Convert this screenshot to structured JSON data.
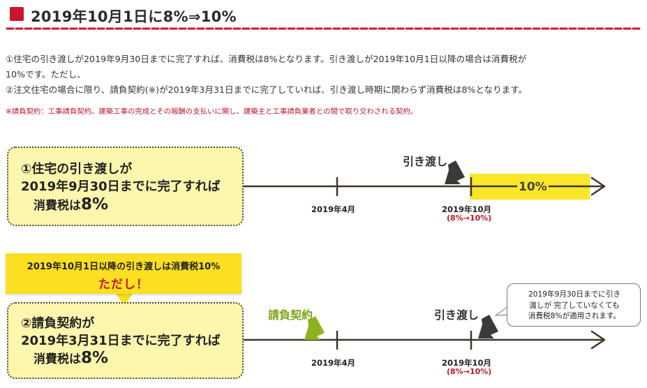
{
  "header": {
    "title": "2019年10月1日に8%⇒10%"
  },
  "body_text": {
    "line1": "①住宅の引き渡しが2019年9月30日までに完了すれば、消費税は8%となります。引き渡しが2019年10月1日以降の場合は消費税が",
    "line2": "10%です。ただし、",
    "line3": "②注文住宅の場合に限り、請負契約(※)が2019年3月31日までに完了していれば、引き渡し時期に関わらず消費税は8%となります。",
    "note": "※請負契約：工事請負契約。建築工事の完成とその報酬の支払いに関し、建築主と工事請負業者との間で取り交わされる契約。"
  },
  "diagram1": {
    "box_line1": "①住宅の引き渡しが",
    "box_line2": "2019年9月30日までに完了すれば",
    "box_line3_prefix": "消費税は",
    "box_line3_pct": "8%",
    "handover_label": "引き渡し",
    "tax_label": "10%",
    "tick1_label": "2019年4月",
    "tick2_label": "2019年10月",
    "tick2_sub": "(8%→10%)"
  },
  "banner": {
    "line1": "2019年10月1日以降の引き渡しは消費税10%",
    "line2": "ただし！"
  },
  "diagram2": {
    "box_line1": "②請負契約が",
    "box_line2": "2019年3月31日までに完了すれば",
    "box_line3_prefix": "消費税は",
    "box_line3_pct": "8%",
    "contract_label": "請負契約",
    "handover_label": "引き渡し",
    "tick1_label": "2019年4月",
    "tick2_label": "2019年10月",
    "tick2_sub": "(8%→10%)",
    "callout_line1": "2019年9月30日までに引き",
    "callout_line2": "渡しが 完了していなくても",
    "callout_line3": "消費税8%が適用されます。"
  },
  "colors": {
    "accent_red": "#c8172b",
    "highlight_yellow": "#fbe62a",
    "box_yellow": "#fdf7ad",
    "banner_yellow": "#fbdf20",
    "arrow_green": "#8db31c",
    "line_brown": "#3d3526"
  }
}
